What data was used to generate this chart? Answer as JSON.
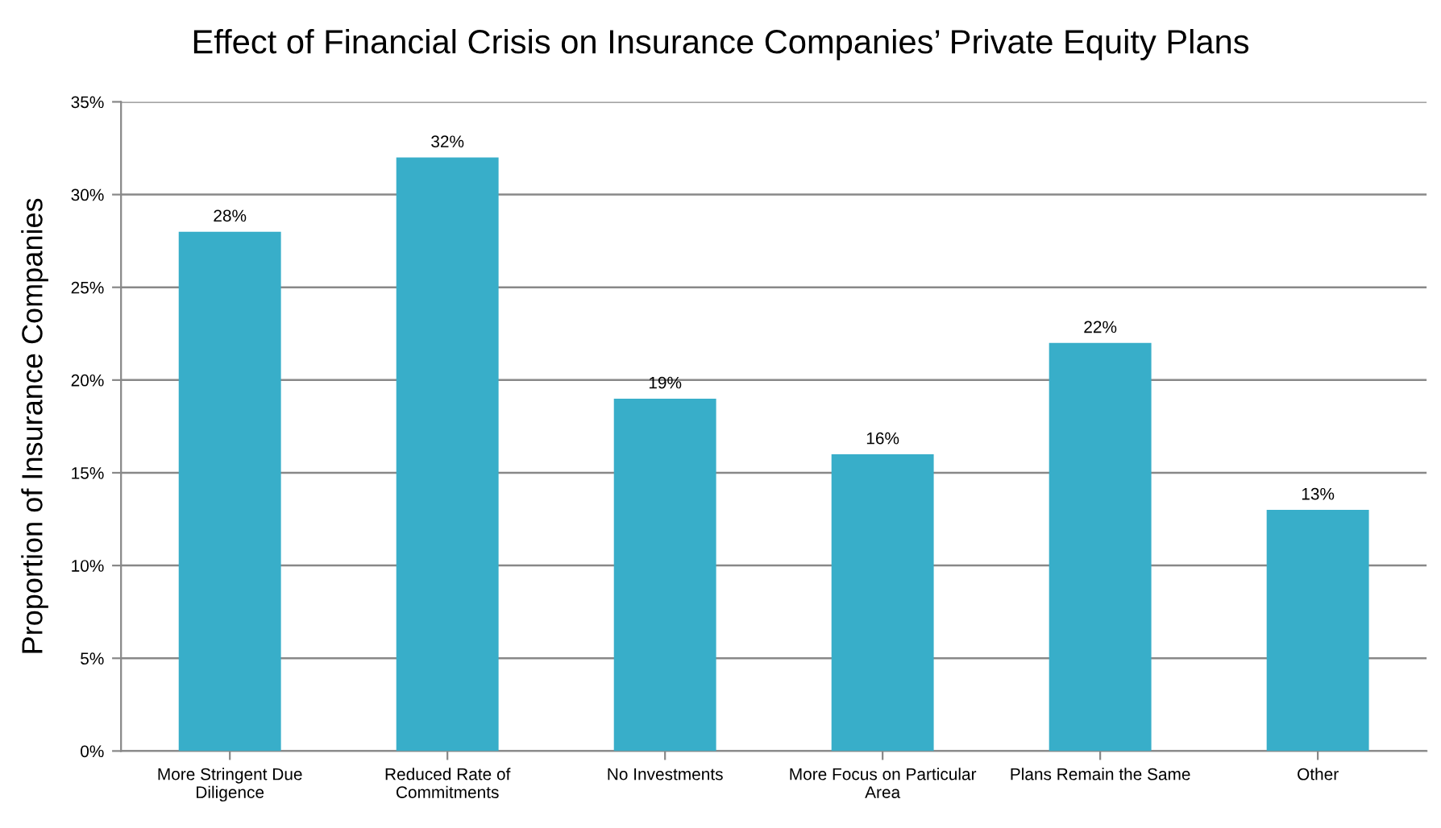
{
  "chart_data": {
    "type": "bar",
    "title": "Effect of Financial Crisis on Insurance Companies’ Private Equity Plans",
    "ylabel": "Proportion of Insurance Companies",
    "categories": [
      "More Stringent Due Diligence",
      "Reduced Rate of Commitments",
      "No Investments",
      "More Focus on Particular Area",
      "Plans Remain the Same",
      "Other"
    ],
    "values": [
      28,
      32,
      19,
      16,
      22,
      13
    ],
    "value_labels": [
      "28%",
      "32%",
      "19%",
      "16%",
      "22%",
      "13%"
    ],
    "color": "#38aec9",
    "ylim": [
      0,
      35
    ],
    "yticks": [
      {
        "value": 0,
        "label": "0%"
      },
      {
        "value": 5,
        "label": "5%"
      },
      {
        "value": 10,
        "label": "10%"
      },
      {
        "value": 15,
        "label": "15%"
      },
      {
        "value": 20,
        "label": "20%"
      },
      {
        "value": 25,
        "label": "25%"
      },
      {
        "value": 30,
        "label": "30%"
      },
      {
        "value": 35,
        "label": "35%"
      }
    ],
    "grid": "y"
  }
}
